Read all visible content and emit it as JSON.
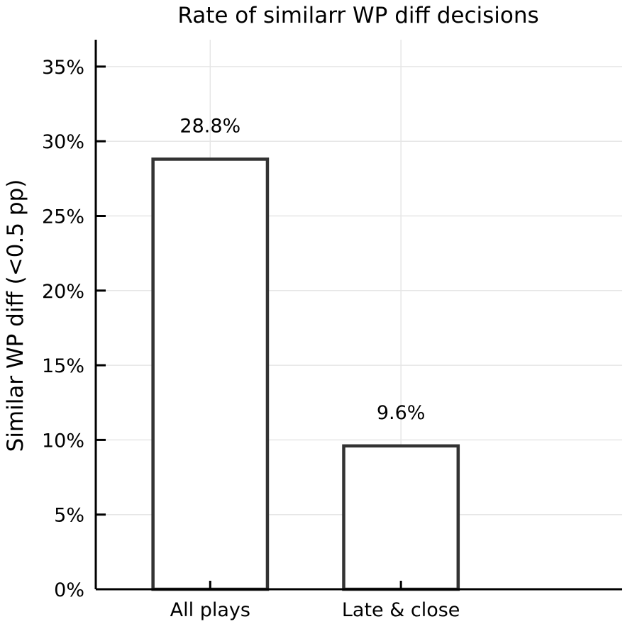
{
  "chart_data": {
    "type": "bar",
    "title": "Rate of similarr WP diff decisions",
    "xlabel": "",
    "ylabel": "Similar WP diff (<0.5 pp)",
    "categories": [
      "All plays",
      "Late & close"
    ],
    "values": [
      28.8,
      9.6
    ],
    "value_labels": [
      "28.8%",
      "9.6%"
    ],
    "ylim": [
      0,
      36.8
    ],
    "yticks": [
      0,
      5,
      10,
      15,
      20,
      25,
      30,
      35
    ],
    "ytick_labels": [
      "0%",
      "5%",
      "10%",
      "15%",
      "20%",
      "25%",
      "30%",
      "35%"
    ],
    "grid": true,
    "legend": "none",
    "colors": {
      "bar_edge": "#333333",
      "bar_fill": "#ffffff",
      "grid": "#e6e6e6"
    }
  }
}
